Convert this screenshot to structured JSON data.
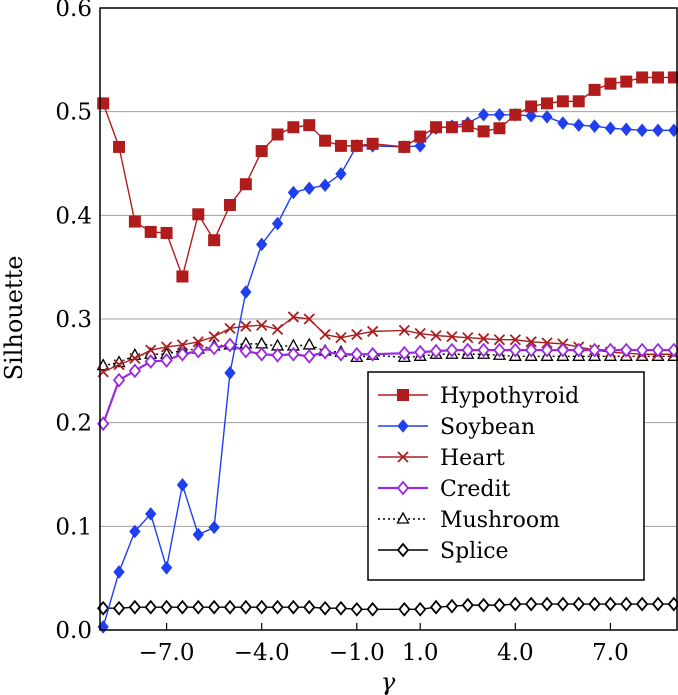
{
  "chart_data": {
    "type": "line",
    "title": "",
    "xlabel": "γ",
    "ylabel": "Silhouette",
    "xlim": [
      -9.1,
      9.1
    ],
    "ylim": [
      0.0,
      0.6
    ],
    "xticks": [
      -7.0,
      -4.0,
      -1.0,
      1.0,
      4.0,
      7.0
    ],
    "xtick_labels": [
      "−7.0",
      "−4.0",
      "−1.0",
      "1.0",
      "4.0",
      "7.0"
    ],
    "yticks": [
      0.0,
      0.1,
      0.2,
      0.3,
      0.4,
      0.5,
      0.6
    ],
    "ytick_labels": [
      "0.0",
      "0.1",
      "0.2",
      "0.3",
      "0.4",
      "0.5",
      "0.6"
    ],
    "grid": "horizontal",
    "legend_position": "bottom-right",
    "series": [
      {
        "name": "Hypothyroid",
        "color": "#b01c1c",
        "marker": "square",
        "x": [
          -9.0,
          -8.5,
          -8.0,
          -7.5,
          -7.0,
          -6.5,
          -6.0,
          -5.5,
          -5.0,
          -4.5,
          -4.0,
          -3.5,
          -3.0,
          -2.5,
          -2.0,
          -1.5,
          -1.0,
          -0.5,
          0.5,
          1.0,
          1.5,
          2.0,
          2.5,
          3.0,
          3.5,
          4.0,
          4.5,
          5.0,
          5.5,
          6.0,
          6.5,
          7.0,
          7.5,
          8.0,
          8.5,
          9.0
        ],
        "values": [
          0.508,
          0.466,
          0.394,
          0.384,
          0.383,
          0.341,
          0.401,
          0.376,
          0.41,
          0.43,
          0.462,
          0.478,
          0.485,
          0.487,
          0.472,
          0.467,
          0.467,
          0.469,
          0.466,
          0.476,
          0.485,
          0.485,
          0.486,
          0.481,
          0.484,
          0.497,
          0.505,
          0.508,
          0.51,
          0.51,
          0.521,
          0.527,
          0.529,
          0.533,
          0.533,
          0.533
        ]
      },
      {
        "name": "Soybean",
        "color": "#1f3ff0",
        "marker": "diamond",
        "x": [
          -9.0,
          -8.5,
          -8.0,
          -7.5,
          -7.0,
          -6.5,
          -6.0,
          -5.5,
          -5.0,
          -4.5,
          -4.0,
          -3.5,
          -3.0,
          -2.5,
          -2.0,
          -1.5,
          -1.0,
          -0.5,
          0.5,
          1.0,
          1.5,
          2.0,
          2.5,
          3.0,
          3.5,
          4.0,
          4.5,
          5.0,
          5.5,
          6.0,
          6.5,
          7.0,
          7.5,
          8.0,
          8.5,
          9.0
        ],
        "values": [
          0.003,
          0.056,
          0.095,
          0.112,
          0.06,
          0.14,
          0.092,
          0.099,
          0.248,
          0.326,
          0.372,
          0.392,
          0.422,
          0.426,
          0.429,
          0.44,
          0.467,
          0.467,
          0.466,
          0.467,
          0.484,
          0.486,
          0.489,
          0.497,
          0.497,
          0.497,
          0.496,
          0.495,
          0.489,
          0.487,
          0.486,
          0.484,
          0.483,
          0.482,
          0.482,
          0.482
        ]
      },
      {
        "name": "Heart",
        "color": "#a82020",
        "marker": "x",
        "x": [
          -9.0,
          -8.5,
          -8.0,
          -7.5,
          -7.0,
          -6.5,
          -6.0,
          -5.5,
          -5.0,
          -4.5,
          -4.0,
          -3.5,
          -3.0,
          -2.5,
          -2.0,
          -1.5,
          -1.0,
          -0.5,
          0.5,
          1.0,
          1.5,
          2.0,
          2.5,
          3.0,
          3.5,
          4.0,
          4.5,
          5.0,
          5.5,
          6.0,
          6.5,
          7.0,
          7.5,
          8.0,
          8.5,
          9.0
        ],
        "values": [
          0.249,
          0.256,
          0.262,
          0.27,
          0.273,
          0.275,
          0.278,
          0.283,
          0.291,
          0.293,
          0.294,
          0.29,
          0.302,
          0.3,
          0.285,
          0.282,
          0.285,
          0.288,
          0.289,
          0.286,
          0.284,
          0.283,
          0.282,
          0.281,
          0.28,
          0.28,
          0.278,
          0.277,
          0.276,
          0.273,
          0.27,
          0.268,
          0.267,
          0.266,
          0.266,
          0.266
        ]
      },
      {
        "name": "Credit",
        "color": "#9a2ae0",
        "marker": "diamond-open",
        "x": [
          -9.0,
          -8.5,
          -8.0,
          -7.5,
          -7.0,
          -6.5,
          -6.0,
          -5.5,
          -5.0,
          -4.5,
          -4.0,
          -3.5,
          -3.0,
          -2.5,
          -2.0,
          -1.5,
          -1.0,
          -0.5,
          0.5,
          1.0,
          1.5,
          2.0,
          2.5,
          3.0,
          3.5,
          4.0,
          4.5,
          5.0,
          5.5,
          6.0,
          6.5,
          7.0,
          7.5,
          8.0,
          8.5,
          9.0
        ],
        "values": [
          0.199,
          0.241,
          0.25,
          0.259,
          0.26,
          0.266,
          0.269,
          0.272,
          0.275,
          0.269,
          0.266,
          0.265,
          0.266,
          0.264,
          0.268,
          0.266,
          0.266,
          0.266,
          0.267,
          0.268,
          0.269,
          0.27,
          0.27,
          0.27,
          0.27,
          0.27,
          0.27,
          0.27,
          0.27,
          0.27,
          0.27,
          0.27,
          0.27,
          0.27,
          0.27,
          0.27
        ]
      },
      {
        "name": "Mushroom",
        "color": "#000000",
        "marker": "triangle-open",
        "linestyle": "dotted",
        "x": [
          -9.0,
          -8.5,
          -8.0,
          -7.5,
          -7.0,
          -6.5,
          -6.0,
          -5.5,
          -5.0,
          -4.5,
          -4.0,
          -3.5,
          -3.0,
          -2.5,
          -2.0,
          -1.5,
          -1.0,
          -0.5,
          0.5,
          1.0,
          1.5,
          2.0,
          2.5,
          3.0,
          3.5,
          4.0,
          4.5,
          5.0,
          5.5,
          6.0,
          6.5,
          7.0,
          7.5,
          8.0,
          8.5,
          9.0
        ],
        "values": [
          0.255,
          0.258,
          0.265,
          0.266,
          0.266,
          0.27,
          0.271,
          0.274,
          0.275,
          0.276,
          0.276,
          0.274,
          0.274,
          0.275,
          0.269,
          0.268,
          0.263,
          0.265,
          0.263,
          0.264,
          0.266,
          0.266,
          0.266,
          0.266,
          0.265,
          0.264,
          0.264,
          0.264,
          0.264,
          0.264,
          0.264,
          0.264,
          0.264,
          0.264,
          0.264,
          0.264
        ]
      },
      {
        "name": "Splice",
        "color": "#000000",
        "marker": "diamond-open",
        "x": [
          -9.0,
          -8.5,
          -8.0,
          -7.5,
          -7.0,
          -6.5,
          -6.0,
          -5.5,
          -5.0,
          -4.5,
          -4.0,
          -3.5,
          -3.0,
          -2.5,
          -2.0,
          -1.5,
          -1.0,
          -0.5,
          0.5,
          1.0,
          1.5,
          2.0,
          2.5,
          3.0,
          3.5,
          4.0,
          4.5,
          5.0,
          5.5,
          6.0,
          6.5,
          7.0,
          7.5,
          8.0,
          8.5,
          9.0
        ],
        "values": [
          0.021,
          0.021,
          0.022,
          0.022,
          0.022,
          0.022,
          0.022,
          0.022,
          0.022,
          0.022,
          0.022,
          0.022,
          0.022,
          0.022,
          0.021,
          0.021,
          0.02,
          0.02,
          0.02,
          0.02,
          0.022,
          0.023,
          0.024,
          0.024,
          0.024,
          0.025,
          0.025,
          0.025,
          0.025,
          0.025,
          0.025,
          0.025,
          0.025,
          0.025,
          0.025,
          0.025
        ]
      }
    ]
  }
}
